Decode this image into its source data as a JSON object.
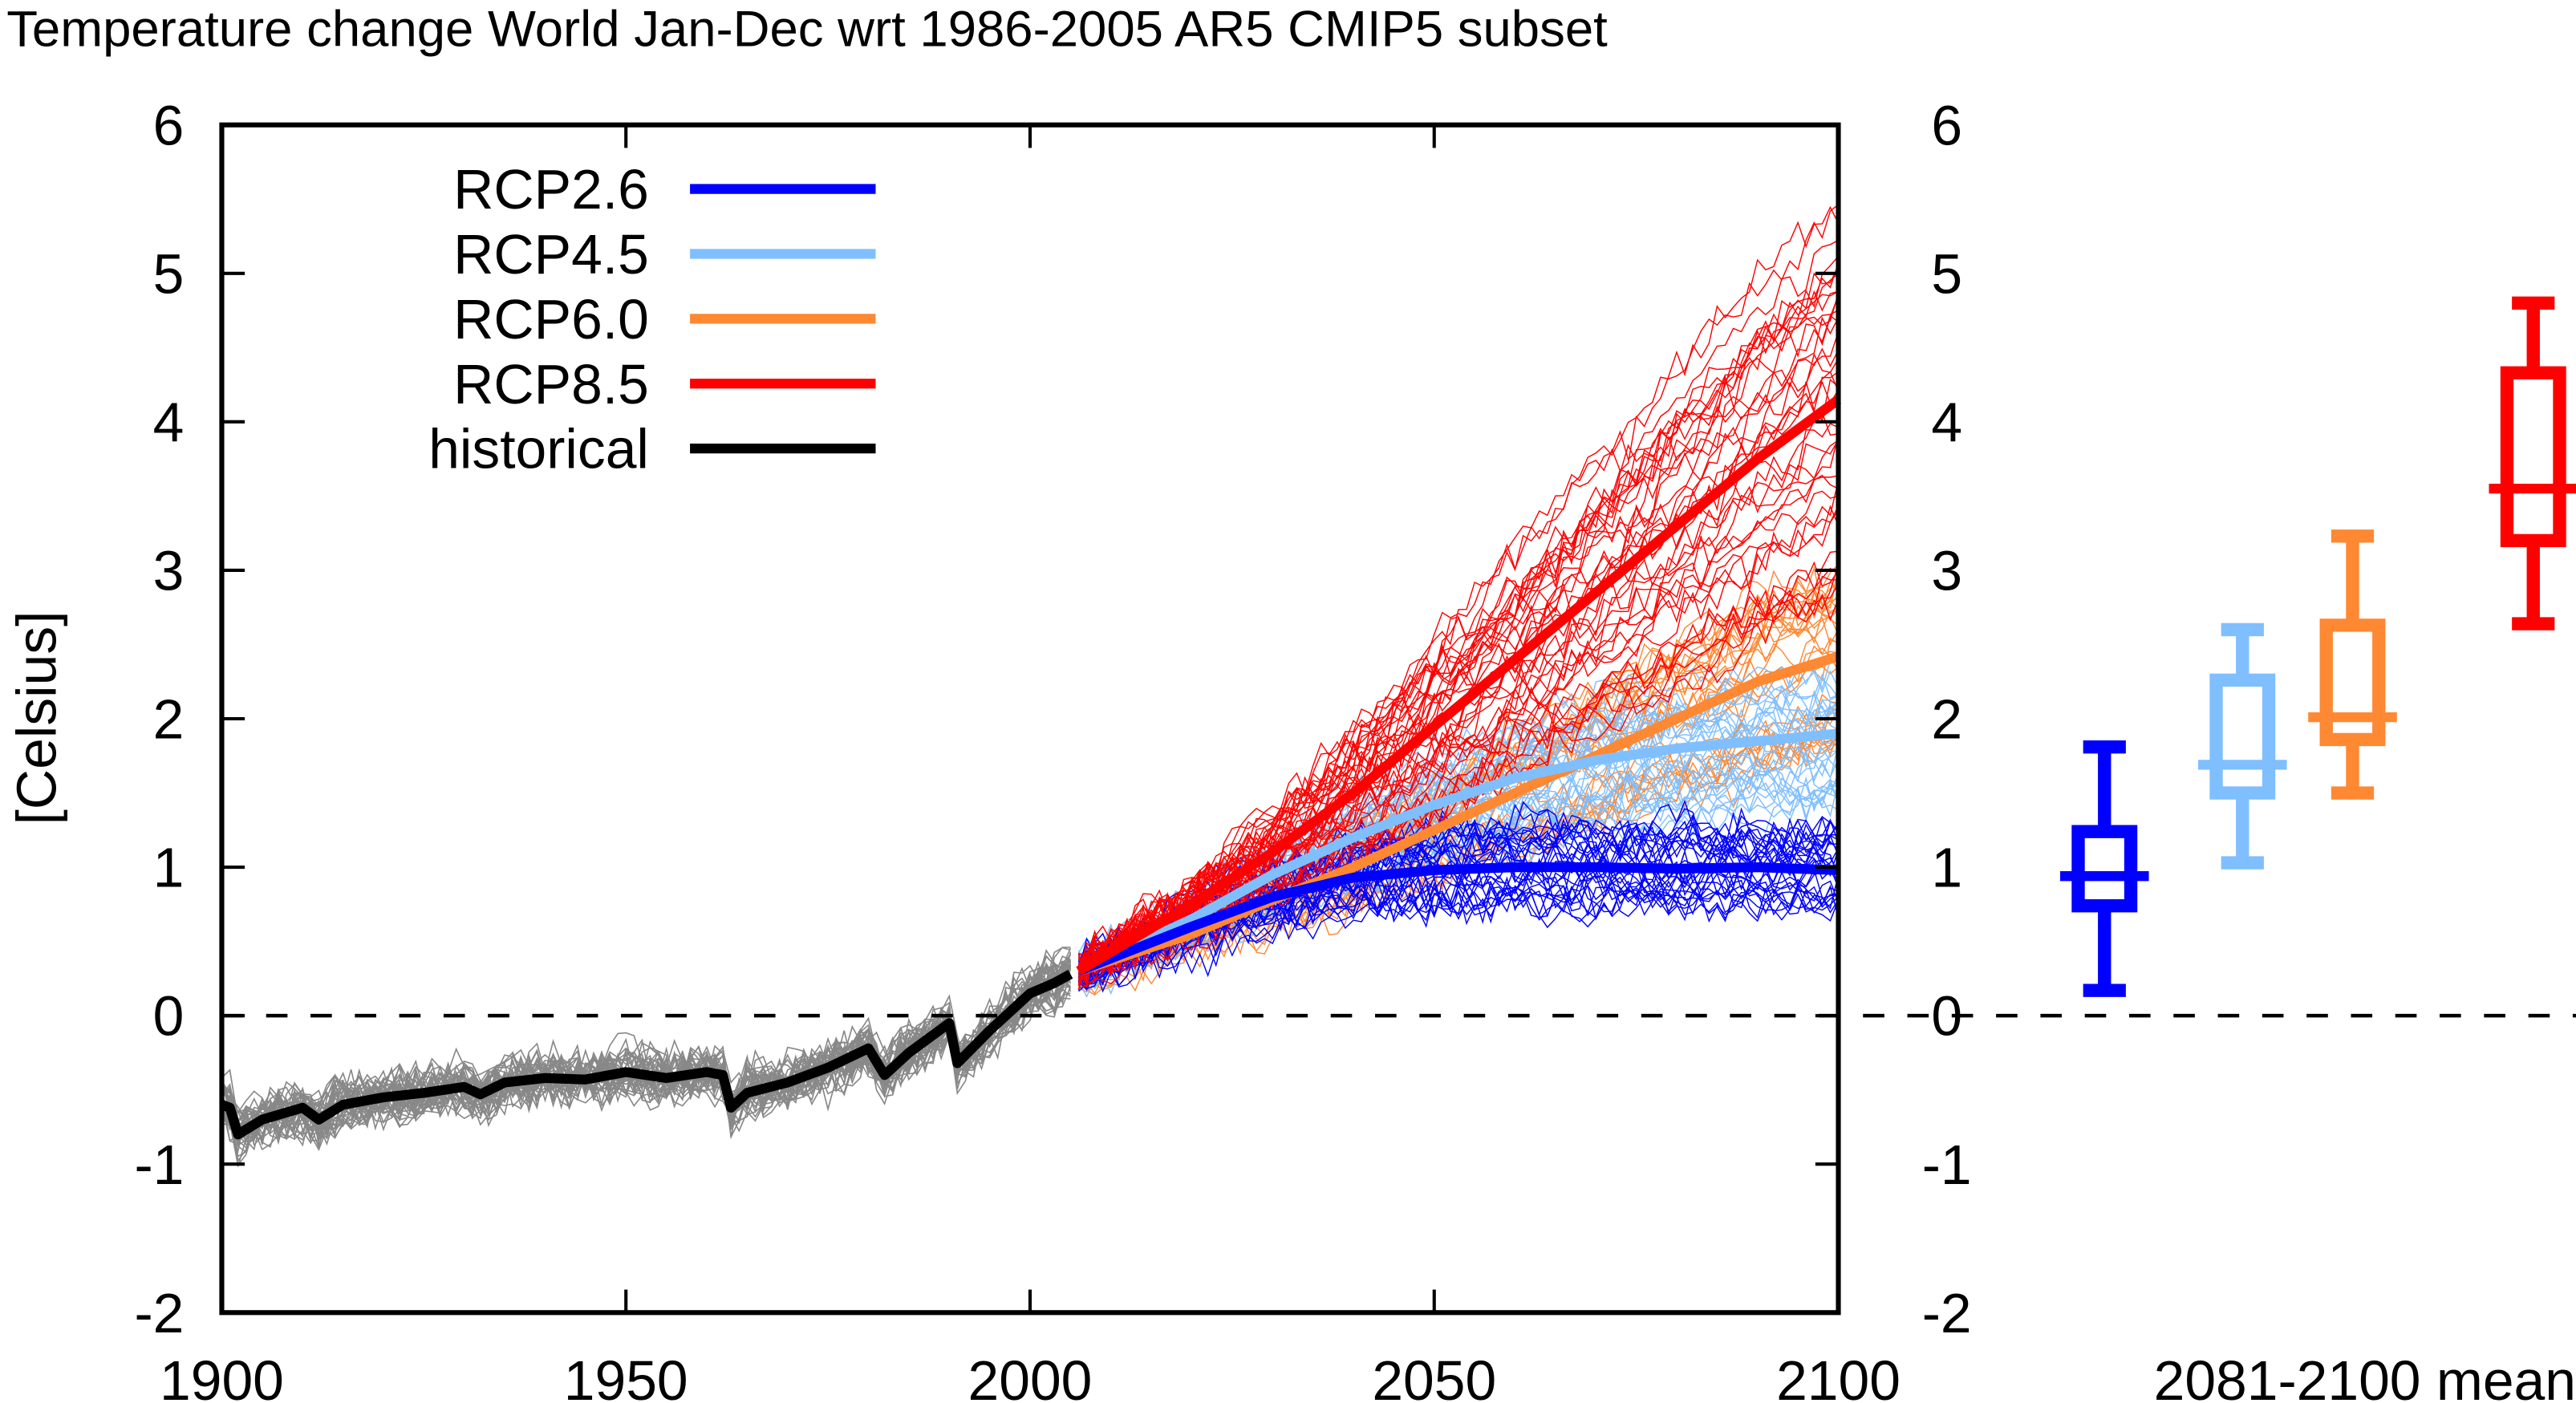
{
  "chart_data": [
    {
      "type": "line",
      "title": "Temperature change World Jan-Dec wrt 1986-2005 AR5 CMIP5 subset",
      "ylabel": "[Celsius]",
      "xlabel": "",
      "xlim": [
        1900,
        2100
      ],
      "ylim": [
        -2,
        6
      ],
      "x_ticks": [
        "1900",
        "1950",
        "2000",
        "2050",
        "2100"
      ],
      "y_ticks": [
        "-2",
        "-1",
        "0",
        "1",
        "2",
        "3",
        "4",
        "5",
        "6"
      ],
      "reference_line": 0,
      "legend_position": "top-left",
      "series": [
        {
          "name": "RCP2.6",
          "color": "#0000ff",
          "x": [
            2006,
            2020,
            2030,
            2040,
            2050,
            2060,
            2070,
            2080,
            2090,
            2100
          ],
          "values": [
            0.3,
            0.6,
            0.8,
            0.93,
            0.98,
            1.0,
            1.0,
            0.99,
            1.0,
            0.98
          ]
        },
        {
          "name": "RCP4.5",
          "color": "#7fbfff",
          "x": [
            2006,
            2020,
            2030,
            2040,
            2050,
            2060,
            2070,
            2080,
            2090,
            2100
          ],
          "values": [
            0.3,
            0.65,
            0.95,
            1.2,
            1.42,
            1.6,
            1.72,
            1.8,
            1.85,
            1.9
          ]
        },
        {
          "name": "RCP6.0",
          "color": "#ff8833",
          "x": [
            2006,
            2020,
            2030,
            2040,
            2050,
            2060,
            2070,
            2080,
            2090,
            2100
          ],
          "values": [
            0.3,
            0.55,
            0.78,
            1.0,
            1.25,
            1.5,
            1.75,
            2.0,
            2.25,
            2.42
          ]
        },
        {
          "name": "RCP8.5",
          "color": "#ff0000",
          "x": [
            2006,
            2020,
            2030,
            2040,
            2050,
            2060,
            2070,
            2080,
            2090,
            2100
          ],
          "values": [
            0.3,
            0.75,
            1.1,
            1.5,
            1.95,
            2.4,
            2.85,
            3.3,
            3.75,
            4.15
          ]
        },
        {
          "name": "historical",
          "color": "#000000",
          "x": [
            1900,
            1901,
            1902,
            1905,
            1910,
            1912,
            1915,
            1920,
            1925,
            1930,
            1932,
            1935,
            1940,
            1945,
            1950,
            1955,
            1960,
            1962,
            1963,
            1965,
            1970,
            1975,
            1980,
            1982,
            1985,
            1990,
            1991,
            1995,
            2000,
            2003,
            2005
          ],
          "values": [
            -0.6,
            -0.62,
            -0.8,
            -0.7,
            -0.62,
            -0.7,
            -0.6,
            -0.55,
            -0.52,
            -0.48,
            -0.53,
            -0.45,
            -0.42,
            -0.43,
            -0.38,
            -0.42,
            -0.38,
            -0.4,
            -0.62,
            -0.52,
            -0.45,
            -0.35,
            -0.22,
            -0.4,
            -0.25,
            -0.05,
            -0.32,
            -0.1,
            0.15,
            0.22,
            0.28
          ]
        }
      ]
    },
    {
      "type": "boxplot",
      "xlabel": "2081-2100 mean",
      "ylim": [
        -2,
        6
      ],
      "y_ticks": [
        "-2",
        "-1",
        "0",
        "1",
        "2",
        "3",
        "4",
        "5",
        "6"
      ],
      "boxes": [
        {
          "name": "RCP2.6",
          "color": "#0000ff",
          "min": 0.17,
          "q1": 0.74,
          "median": 0.94,
          "q3": 1.24,
          "max": 1.81
        },
        {
          "name": "RCP4.5",
          "color": "#7fbfff",
          "min": 1.03,
          "q1": 1.5,
          "median": 1.69,
          "q3": 2.26,
          "max": 2.6
        },
        {
          "name": "RCP6.0",
          "color": "#ff8833",
          "min": 1.5,
          "q1": 1.86,
          "median": 2.01,
          "q3": 2.63,
          "max": 3.23
        },
        {
          "name": "RCP8.5",
          "color": "#ff0000",
          "min": 2.64,
          "q1": 3.2,
          "median": 3.55,
          "q3": 4.33,
          "max": 4.8
        }
      ]
    }
  ]
}
